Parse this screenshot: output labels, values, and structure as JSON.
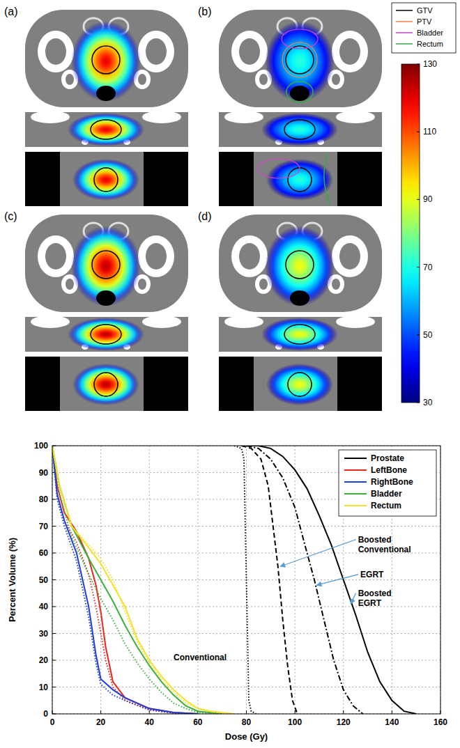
{
  "dose_maps": {
    "panels": [
      {
        "label": "(a)",
        "peak_dose": 120,
        "contours": [
          "GTV"
        ]
      },
      {
        "label": "(b)",
        "peak_dose": 72,
        "contours": [
          "GTV",
          "PTV",
          "Bladder",
          "Rectum"
        ]
      },
      {
        "label": "(c)",
        "peak_dose": 125,
        "contours": [
          "GTV"
        ]
      },
      {
        "label": "(d)",
        "peak_dose": 92,
        "contours": [
          "GTV"
        ]
      }
    ],
    "legend": [
      {
        "name": "GTV",
        "color": "#000000"
      },
      {
        "name": "PTV",
        "color": "#ff7f3f"
      },
      {
        "name": "Bladder",
        "color": "#cc44cc"
      },
      {
        "name": "Rectum",
        "color": "#33aa44"
      }
    ],
    "colorbar": {
      "range": [
        30,
        130
      ],
      "ticks": [
        30,
        50,
        70,
        90,
        110,
        130
      ]
    }
  },
  "chart_data": {
    "type": "line",
    "x_label": "Dose (Gy)",
    "y_label": "Percent Volume (%)",
    "xlim": [
      0,
      160
    ],
    "ylim": [
      0,
      100
    ],
    "xticks": [
      0,
      20,
      40,
      60,
      80,
      100,
      120,
      140,
      160
    ],
    "yticks": [
      0,
      10,
      20,
      30,
      40,
      50,
      60,
      70,
      80,
      90,
      100
    ],
    "grid": true,
    "legend": "upper right",
    "series": [
      {
        "name": "Prostate",
        "color": "#000000",
        "line_style": "solid",
        "x": [
          80,
          85,
          90,
          95,
          100,
          105,
          110,
          115,
          120,
          125,
          130,
          135,
          140,
          145,
          150
        ],
        "values": [
          100,
          100,
          99,
          96,
          91,
          84,
          74,
          63,
          50,
          37,
          23,
          12,
          5,
          1,
          0
        ]
      },
      {
        "color": "#000000",
        "line_style": "dashdot",
        "x": [
          80,
          85,
          90,
          95,
          100,
          105,
          108,
          112,
          116,
          120,
          124,
          128
        ],
        "values": [
          100,
          99,
          95,
          88,
          77,
          60,
          50,
          35,
          20,
          9,
          3,
          0
        ]
      },
      {
        "color": "#000000",
        "line_style": "dashed",
        "x": [
          78,
          82,
          86,
          89,
          91,
          93,
          95,
          97,
          99,
          101
        ],
        "values": [
          100,
          99,
          95,
          85,
          70,
          55,
          35,
          18,
          5,
          0
        ]
      },
      {
        "color": "#000000",
        "line_style": "dotted",
        "x": [
          75,
          78,
          79,
          80,
          81,
          82,
          84
        ],
        "values": [
          100,
          99,
          95,
          50,
          5,
          1,
          0
        ]
      },
      {
        "name": "LeftBone",
        "color": "#e8281e",
        "line_style": "solid",
        "x": [
          0,
          2,
          5,
          10,
          15,
          18,
          20,
          22,
          25,
          30,
          40,
          50,
          60
        ],
        "values": [
          100,
          85,
          75,
          68,
          58,
          48,
          38,
          25,
          12,
          6,
          2,
          0.5,
          0
        ]
      },
      {
        "color": "#e8281e",
        "line_style": "dotted",
        "x": [
          0,
          2,
          5,
          10,
          15,
          18,
          20,
          22,
          25,
          30,
          40,
          50,
          60
        ],
        "values": [
          100,
          82,
          72,
          64,
          52,
          40,
          30,
          20,
          10,
          5,
          1.5,
          0.3,
          0
        ]
      },
      {
        "name": "RightBone",
        "color": "#1f3fd6",
        "line_style": "solid",
        "x": [
          0,
          2,
          5,
          10,
          15,
          18,
          20,
          25,
          30,
          40,
          50,
          60
        ],
        "values": [
          100,
          82,
          72,
          60,
          40,
          22,
          13,
          9,
          6,
          2,
          0.5,
          0
        ]
      },
      {
        "color": "#1f3fd6",
        "line_style": "dotted",
        "x": [
          0,
          2,
          5,
          10,
          15,
          18,
          20,
          25,
          30,
          40,
          50,
          60
        ],
        "values": [
          100,
          80,
          70,
          57,
          36,
          19,
          11,
          7,
          5,
          1.5,
          0.3,
          0
        ]
      },
      {
        "name": "Bladder",
        "color": "#3bb03b",
        "line_style": "solid",
        "x": [
          0,
          3,
          8,
          15,
          20,
          25,
          30,
          35,
          40,
          45,
          50,
          55,
          60,
          70
        ],
        "values": [
          100,
          85,
          70,
          58,
          50,
          42,
          33,
          25,
          18,
          12,
          7,
          3,
          1,
          0
        ]
      },
      {
        "color": "#3bb03b",
        "line_style": "dotted",
        "x": [
          0,
          3,
          8,
          15,
          20,
          25,
          30,
          35,
          40,
          45,
          50,
          55,
          60,
          70
        ],
        "values": [
          100,
          82,
          66,
          52,
          43,
          35,
          26,
          19,
          13,
          8,
          4,
          2,
          0.5,
          0
        ]
      },
      {
        "name": "Rectum",
        "color": "#f2e22a",
        "line_style": "solid",
        "x": [
          0,
          3,
          8,
          15,
          20,
          25,
          30,
          35,
          40,
          45,
          50,
          55,
          60,
          65,
          75
        ],
        "values": [
          100,
          85,
          70,
          62,
          56,
          48,
          40,
          28,
          20,
          14,
          9,
          5,
          2,
          1,
          0
        ]
      },
      {
        "color": "#f2e22a",
        "line_style": "dotted",
        "x": [
          0,
          3,
          8,
          15,
          20,
          25,
          30,
          35,
          40,
          45,
          50,
          55,
          60,
          70
        ],
        "values": [
          100,
          84,
          70,
          63,
          58,
          50,
          38,
          27,
          19,
          13,
          8,
          4,
          2,
          0
        ]
      }
    ],
    "annotations": [
      {
        "text": "Boosted Conventional",
        "x": 126,
        "y": 64,
        "arrow_to": [
          94,
          55
        ]
      },
      {
        "text": "EGRT",
        "x": 127,
        "y": 51,
        "arrow_to": [
          109,
          48
        ]
      },
      {
        "text": "Boosted EGRT",
        "x": 126,
        "y": 44,
        "arrow_to": [
          123,
          41
        ]
      },
      {
        "text": "Conventional",
        "x": 50,
        "y": 20
      }
    ]
  }
}
